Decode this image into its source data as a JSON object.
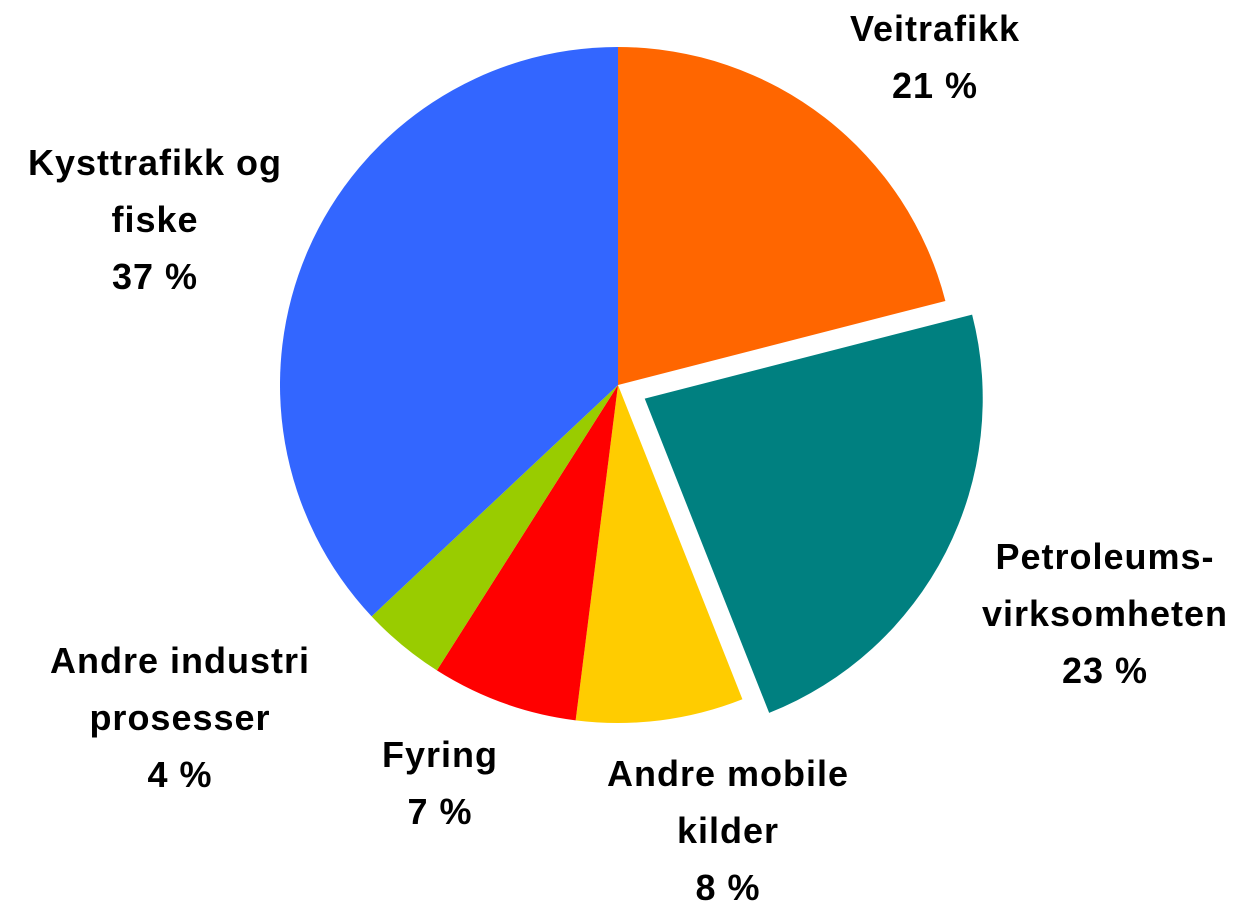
{
  "chart_data": {
    "type": "pie",
    "categories": [
      "Veitrafikk",
      "Petroleums-virksomheten",
      "Andre mobile kilder",
      "Fyring",
      "Andre industri prosesser",
      "Kysttrafikk og fiske"
    ],
    "values": [
      21,
      23,
      8,
      7,
      4,
      37
    ],
    "value_labels": [
      "21 %",
      "23 %",
      "8 %",
      "7 %",
      "4 %",
      "37 %"
    ],
    "colors": [
      "#FF6600",
      "#008080",
      "#FFCC00",
      "#FF0000",
      "#99CC00",
      "#3366FF"
    ],
    "explode": [
      false,
      true,
      false,
      false,
      false,
      false
    ]
  }
}
